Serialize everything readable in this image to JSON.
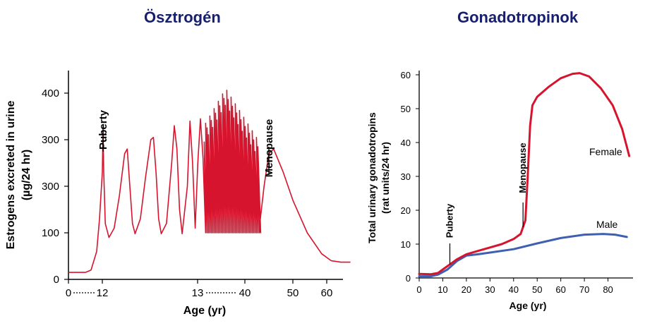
{
  "chart_data": [
    {
      "type": "line",
      "title": "Ösztrogén",
      "xlabel": "Age (yr)",
      "ylabel": "Estrogens excreted in urine",
      "ylabel_unit": "(µg/24 hr)",
      "x_ticks": [
        "0",
        "12",
        "13",
        "40",
        "50",
        "60"
      ],
      "y_ticks": [
        "0",
        "100",
        "300",
        "300",
        "400"
      ],
      "annotations": [
        "Puberty",
        "Menopause"
      ],
      "series": [
        {
          "color": "#d7142e",
          "points": [
            [
              0,
              15
            ],
            [
              6,
              15
            ],
            [
              8,
              20
            ],
            [
              10,
              60
            ],
            [
              11,
              130
            ],
            [
              12,
              230
            ],
            [
              12.5,
              320
            ],
            [
              13,
              230
            ],
            [
              13.3,
              120
            ],
            [
              14,
              90
            ],
            [
              15,
              110
            ],
            [
              16,
              180
            ],
            [
              17,
              270
            ],
            [
              17.5,
              280
            ],
            [
              18,
              200
            ],
            [
              18.5,
              120
            ],
            [
              19,
              98
            ],
            [
              20,
              130
            ],
            [
              21,
              220
            ],
            [
              22,
              300
            ],
            [
              22.5,
              305
            ],
            [
              23,
              230
            ],
            [
              23.5,
              130
            ],
            [
              24,
              98
            ],
            [
              25,
              120
            ],
            [
              26,
              250
            ],
            [
              26.5,
              330
            ],
            [
              27,
              280
            ],
            [
              27.5,
              150
            ],
            [
              28,
              98
            ],
            [
              29,
              200
            ],
            [
              29.5,
              340
            ],
            [
              30,
              250
            ],
            [
              30.5,
              110
            ],
            [
              31,
              250
            ],
            [
              31.5,
              345
            ],
            [
              32,
              260
            ],
            [
              32.5,
              100
            ],
            [
              43,
              110
            ],
            [
              44,
              200
            ],
            [
              45,
              270
            ],
            [
              46,
              280
            ],
            [
              48,
              230
            ],
            [
              50,
              170
            ],
            [
              53,
              100
            ],
            [
              56,
              55
            ],
            [
              58,
              40
            ],
            [
              60,
              37
            ],
            [
              62,
              37
            ]
          ],
          "cycling_band": {
            "x_range": [
              32.5,
              43
            ],
            "low": 100,
            "peaks": [
              320,
              400,
              340
            ]
          }
        }
      ]
    },
    {
      "type": "line",
      "title": "Gonadotropinok",
      "xlabel": "Age (yr)",
      "ylabel": "Total urinary gonadotropins",
      "ylabel_unit": "(rat units/24 hr)",
      "x_ticks": [
        "0",
        "10",
        "20",
        "30",
        "40",
        "50",
        "60",
        "70",
        "80"
      ],
      "y_ticks": [
        "0",
        "10",
        "20",
        "30",
        "40",
        "50",
        "60"
      ],
      "xlim": [
        0,
        90
      ],
      "ylim": [
        0,
        60
      ],
      "annotations": [
        "Puberty",
        "Menopause"
      ],
      "series": [
        {
          "name": "Female",
          "color": "#d7142e",
          "points": [
            [
              0,
              1.2
            ],
            [
              5,
              1.1
            ],
            [
              8,
              1.5
            ],
            [
              10,
              2.5
            ],
            [
              13,
              4
            ],
            [
              16,
              5.5
            ],
            [
              20,
              7
            ],
            [
              25,
              8
            ],
            [
              30,
              9
            ],
            [
              35,
              10
            ],
            [
              40,
              11.5
            ],
            [
              43,
              13
            ],
            [
              45,
              17
            ],
            [
              46,
              30
            ],
            [
              47,
              45
            ],
            [
              48,
              51
            ],
            [
              50,
              53.5
            ],
            [
              55,
              56.5
            ],
            [
              60,
              59
            ],
            [
              65,
              60.3
            ],
            [
              68,
              60.5
            ],
            [
              72,
              59.5
            ],
            [
              77,
              56
            ],
            [
              82,
              51
            ],
            [
              86,
              44
            ],
            [
              89,
              36
            ]
          ]
        },
        {
          "name": "Male",
          "color": "#3f5fb0",
          "points": [
            [
              0,
              0.5
            ],
            [
              5,
              0.5
            ],
            [
              8,
              1
            ],
            [
              12,
              2.5
            ],
            [
              16,
              5
            ],
            [
              20,
              6.6
            ],
            [
              25,
              7
            ],
            [
              30,
              7.5
            ],
            [
              40,
              8.5
            ],
            [
              50,
              10.2
            ],
            [
              60,
              11.8
            ],
            [
              70,
              12.8
            ],
            [
              78,
              13
            ],
            [
              83,
              12.8
            ],
            [
              88,
              12.1
            ]
          ]
        }
      ]
    }
  ]
}
